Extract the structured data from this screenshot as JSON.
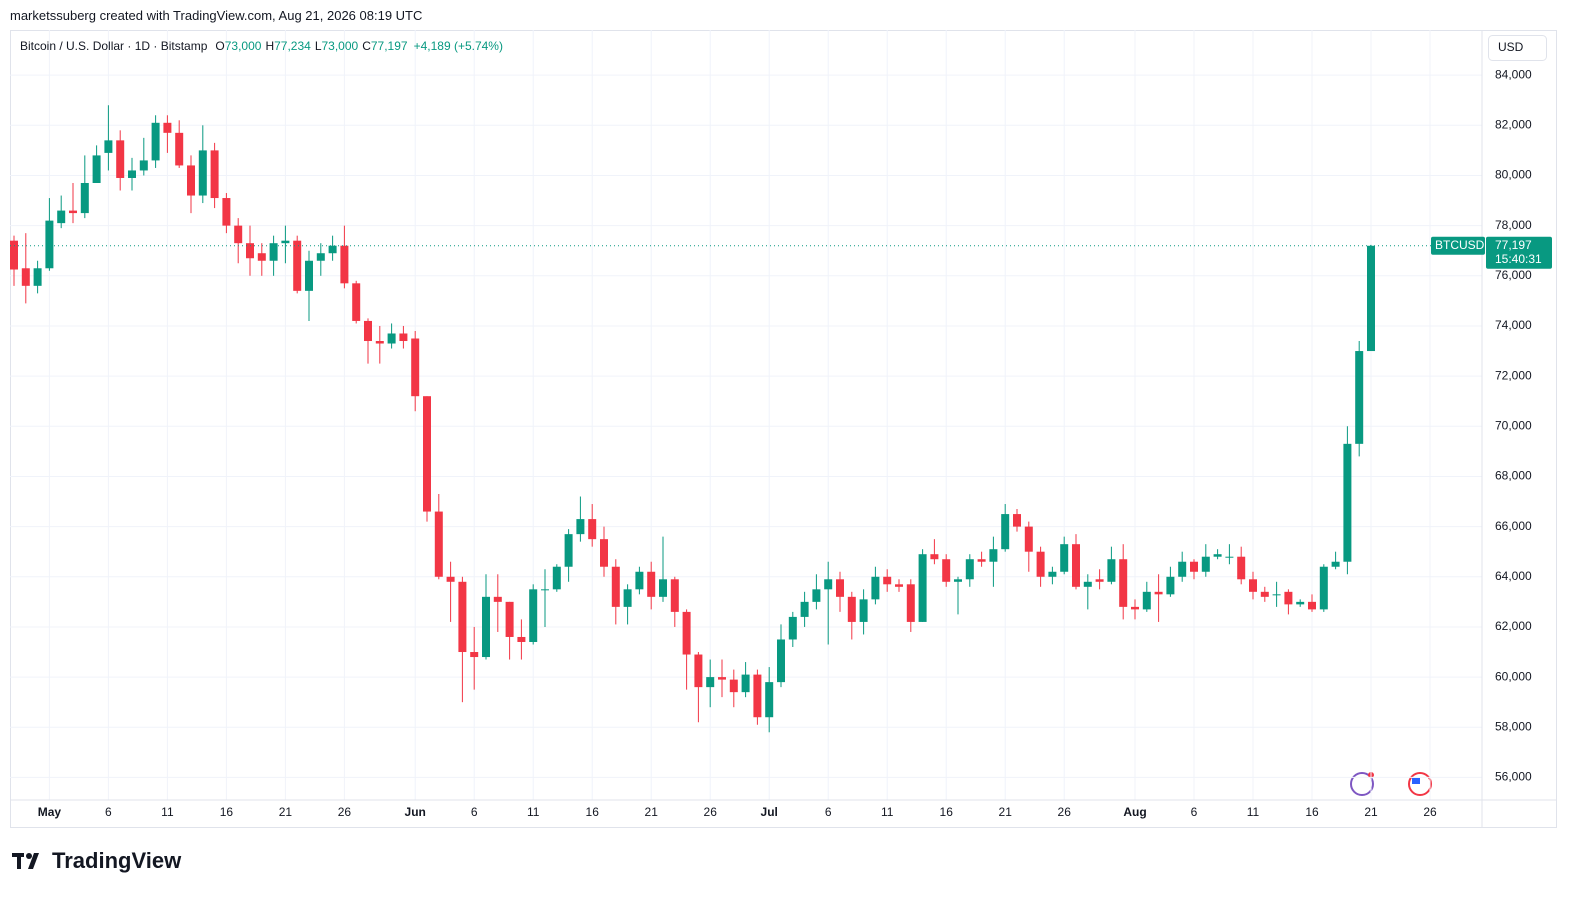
{
  "caption": "marketssuberg created with TradingView.com, Aug 21, 2026 08:19 UTC",
  "legend": {
    "symbol": "Bitcoin / U.S. Dollar · 1D · Bitstamp",
    "ohlc": [
      {
        "key": "O",
        "value": "73,000"
      },
      {
        "key": "H",
        "value": "77,234"
      },
      {
        "key": "L",
        "value": "73,000"
      },
      {
        "key": "C",
        "value": "77,197"
      }
    ],
    "change": "+4,189 (+5.74%)"
  },
  "currency": "USD",
  "price_label": {
    "symbol": "BTCUSD",
    "price": "77,197",
    "countdown": "15:40:31"
  },
  "brand": "TradingView",
  "chart_data": {
    "type": "candlestick",
    "up_color": "#089981",
    "down_color": "#f23645",
    "grid": true,
    "categories": [
      null,
      null,
      null,
      "May",
      null,
      null,
      null,
      null,
      "6",
      null,
      null,
      null,
      null,
      "11",
      null,
      null,
      null,
      null,
      "16",
      null,
      null,
      null,
      null,
      "21",
      null,
      null,
      null,
      null,
      "26",
      null,
      null,
      null,
      null,
      null,
      "Jun",
      null,
      null,
      null,
      null,
      "6",
      null,
      null,
      null,
      null,
      "11",
      null,
      null,
      null,
      null,
      "16",
      null,
      null,
      null,
      null,
      "21",
      null,
      null,
      null,
      null,
      "26",
      null,
      null,
      null,
      null,
      "Jul",
      null,
      null,
      null,
      null,
      "6",
      null,
      null,
      null,
      null,
      "11",
      null,
      null,
      null,
      null,
      "16",
      null,
      null,
      null,
      null,
      "21",
      null,
      null,
      null,
      null,
      "26",
      null,
      null,
      null,
      null,
      null,
      "Aug",
      null,
      null,
      null,
      null,
      "6",
      null,
      null,
      null,
      null,
      "11",
      null,
      null,
      null,
      null,
      "16",
      null,
      null,
      null,
      null,
      "21",
      null,
      null,
      null,
      null,
      "26"
    ],
    "open": [
      77400,
      76300,
      75600,
      76300,
      78100,
      78600,
      78500,
      79700,
      80900,
      81400,
      79900,
      80200,
      80600,
      82100,
      81700,
      80400,
      79200,
      81000,
      79100,
      78000,
      77300,
      76900,
      76600,
      77300,
      77400,
      75400,
      76600,
      76900,
      77200,
      75700,
      74200,
      73400,
      73300,
      73700,
      73500,
      71200,
      66600,
      64000,
      63800,
      61000,
      60800,
      63200,
      63000,
      61600,
      61400,
      63500,
      63500,
      64400,
      65700,
      66300,
      65500,
      64400,
      62800,
      63500,
      64200,
      63200,
      63900,
      62600,
      60900,
      59600,
      60000,
      59900,
      59400,
      60100,
      58400,
      59800,
      61500,
      62400,
      63000,
      63500,
      63900,
      63200,
      62200,
      63100,
      64000,
      63700,
      63700,
      62200,
      64900,
      64700,
      63800,
      63900,
      64700,
      64600,
      65100,
      66500,
      66000,
      65000,
      64000,
      64200,
      65300,
      63600,
      63900,
      63800,
      64700,
      62800,
      62700,
      63400,
      63300,
      64000,
      64600,
      64200,
      64800,
      64800,
      64800,
      63900,
      63400,
      63300,
      63400,
      62900,
      63000,
      62700,
      64400,
      64600,
      69300,
      73000,
      null,
      null,
      null,
      null,
      null
    ],
    "high": [
      77600,
      77700,
      76600,
      79100,
      79200,
      79700,
      80800,
      81200,
      82800,
      81800,
      80700,
      81500,
      82400,
      82400,
      82200,
      80800,
      82000,
      81300,
      79300,
      78300,
      78000,
      77300,
      77600,
      78000,
      77600,
      77000,
      77300,
      77600,
      78000,
      75800,
      74300,
      74000,
      74100,
      74000,
      73800,
      71200,
      67300,
      64600,
      64000,
      62000,
      64100,
      64100,
      63000,
      62300,
      63700,
      64300,
      64500,
      65900,
      67200,
      66900,
      66000,
      64700,
      63700,
      64400,
      64600,
      65600,
      64000,
      62700,
      61000,
      60700,
      60700,
      60300,
      60600,
      60300,
      60400,
      62100,
      62600,
      63400,
      64100,
      64600,
      64200,
      63400,
      63500,
      64400,
      64300,
      63900,
      63900,
      65100,
      65500,
      64900,
      64000,
      64900,
      65000,
      65600,
      66900,
      66700,
      66200,
      65200,
      64400,
      65600,
      65700,
      64100,
      64300,
      65200,
      65300,
      63100,
      63800,
      64100,
      64400,
      65000,
      64700,
      65300,
      65100,
      65300,
      65200,
      64200,
      63600,
      63800,
      63500,
      63100,
      63300,
      64500,
      65000,
      70000,
      73400,
      77234,
      null,
      null,
      null,
      null,
      null
    ],
    "low": [
      75600,
      74900,
      75300,
      76200,
      77900,
      78100,
      78300,
      79700,
      80200,
      79400,
      79400,
      80000,
      80300,
      80900,
      80300,
      78500,
      78900,
      78700,
      77700,
      76500,
      76000,
      76000,
      76000,
      76500,
      75300,
      74200,
      76000,
      76600,
      75500,
      74100,
      72500,
      72500,
      73100,
      73100,
      70600,
      66200,
      63900,
      62200,
      59000,
      59500,
      60700,
      61800,
      60700,
      60700,
      61300,
      62000,
      63400,
      63800,
      65400,
      65200,
      64000,
      62100,
      62100,
      63300,
      62700,
      63000,
      62000,
      59500,
      58200,
      58800,
      59200,
      58800,
      59200,
      58100,
      57800,
      59600,
      61200,
      62000,
      62700,
      61300,
      62600,
      61500,
      61700,
      62900,
      63400,
      63400,
      61800,
      62200,
      64500,
      63600,
      62500,
      63600,
      64400,
      63600,
      65000,
      65800,
      64200,
      63600,
      63700,
      64100,
      63500,
      62700,
      63500,
      63700,
      62300,
      62300,
      62600,
      62200,
      63200,
      63800,
      63900,
      64000,
      64700,
      64500,
      63700,
      63100,
      63000,
      62800,
      62500,
      62800,
      62600,
      62600,
      64300,
      64100,
      68800,
      73000,
      null,
      null,
      null,
      null,
      null
    ],
    "close": [
      76250,
      75600,
      76300,
      78200,
      78600,
      78500,
      79700,
      80800,
      81400,
      79900,
      80200,
      80600,
      82100,
      81700,
      80400,
      79200,
      81000,
      79100,
      78000,
      77300,
      76700,
      76600,
      77300,
      77400,
      75400,
      76600,
      76900,
      77200,
      75700,
      74200,
      73400,
      73300,
      73700,
      73400,
      71200,
      66600,
      64000,
      63800,
      61000,
      60800,
      63200,
      63000,
      61600,
      61400,
      63500,
      63500,
      64400,
      65700,
      66300,
      65500,
      64400,
      62800,
      63500,
      64200,
      63200,
      63900,
      62600,
      60900,
      59600,
      60000,
      59900,
      59400,
      60100,
      58400,
      59800,
      61500,
      62400,
      63000,
      63500,
      63900,
      63200,
      62200,
      63100,
      64000,
      63700,
      63600,
      62200,
      64900,
      64700,
      63800,
      63900,
      64700,
      64600,
      65100,
      66500,
      66000,
      65000,
      64000,
      64200,
      65300,
      63600,
      63800,
      63800,
      64700,
      62800,
      62700,
      63400,
      63300,
      64000,
      64600,
      64200,
      64800,
      64900,
      64800,
      63900,
      63400,
      63200,
      63300,
      62900,
      63000,
      62700,
      64400,
      64600,
      69300,
      73000,
      77197,
      null,
      null,
      null,
      null,
      null
    ],
    "ylim": [
      55100,
      85800
    ],
    "yticks": [
      {
        "value": 56000,
        "label": "56,000"
      },
      {
        "value": 58000,
        "label": "58,000"
      },
      {
        "value": 60000,
        "label": "60,000"
      },
      {
        "value": 62000,
        "label": "62,000"
      },
      {
        "value": 64000,
        "label": "64,000"
      },
      {
        "value": 66000,
        "label": "66,000"
      },
      {
        "value": 68000,
        "label": "68,000"
      },
      {
        "value": 70000,
        "label": "70,000"
      },
      {
        "value": 72000,
        "label": "72,000"
      },
      {
        "value": 74000,
        "label": "74,000"
      },
      {
        "value": 76000,
        "label": "76,000"
      },
      {
        "value": 78000,
        "label": "78,000"
      },
      {
        "value": 80000,
        "label": "80,000"
      },
      {
        "value": 82000,
        "label": "82,000"
      },
      {
        "value": 84000,
        "label": "84,000"
      }
    ]
  }
}
